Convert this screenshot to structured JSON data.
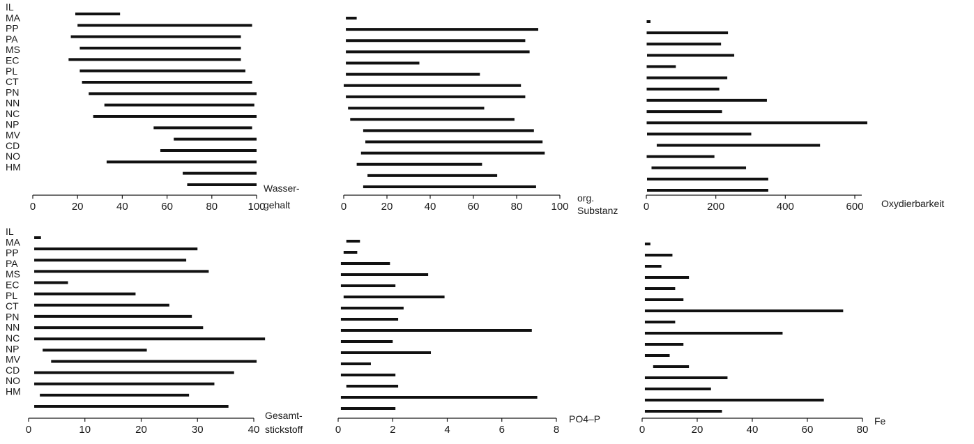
{
  "chart_data": {
    "type": "bar",
    "orientation": "horizontal-range",
    "grid": false,
    "categories": [
      "IL",
      "MA",
      "PP",
      "PA",
      "MS",
      "EC",
      "PL",
      "CT",
      "PN",
      "NN",
      "NC",
      "NP",
      "MV",
      "CD",
      "NO",
      "HM"
    ],
    "panels": [
      {
        "xlabel_lines": [
          "Wasser-",
          "gehalt"
        ],
        "ticks": [
          0,
          20,
          40,
          60,
          80,
          100
        ],
        "xlim": [
          0,
          100
        ],
        "ranges": [
          [
            19,
            39
          ],
          [
            20,
            98
          ],
          [
            17,
            93
          ],
          [
            21,
            93
          ],
          [
            16,
            93
          ],
          [
            21,
            95
          ],
          [
            22,
            98
          ],
          [
            25,
            100
          ],
          [
            32,
            99
          ],
          [
            27,
            100
          ],
          [
            54,
            98
          ],
          [
            63,
            100
          ],
          [
            57,
            100
          ],
          [
            33,
            100
          ],
          [
            67,
            100
          ],
          [
            69,
            100
          ]
        ]
      },
      {
        "xlabel_lines": [
          "org.",
          "Substanz"
        ],
        "ticks": [
          0,
          20,
          40,
          60,
          80,
          100
        ],
        "xlim": [
          0,
          100
        ],
        "ranges": [
          [
            1,
            6
          ],
          [
            1,
            90
          ],
          [
            1,
            84
          ],
          [
            1,
            86
          ],
          [
            1,
            35
          ],
          [
            1,
            63
          ],
          [
            0,
            82
          ],
          [
            1,
            84
          ],
          [
            2,
            65
          ],
          [
            3,
            79
          ],
          [
            9,
            88
          ],
          [
            10,
            92
          ],
          [
            8,
            93
          ],
          [
            6,
            64
          ],
          [
            11,
            71
          ],
          [
            9,
            89
          ]
        ]
      },
      {
        "xlabel_lines": [
          "Oxydierbarkeit"
        ],
        "ticks": [
          0,
          200,
          400,
          600
        ],
        "xlim": [
          0,
          620
        ],
        "ranges": [
          [
            1,
            12
          ],
          [
            1,
            235
          ],
          [
            1,
            215
          ],
          [
            2,
            253
          ],
          [
            1,
            85
          ],
          [
            1,
            233
          ],
          [
            1,
            210
          ],
          [
            1,
            347
          ],
          [
            1,
            218
          ],
          [
            1,
            636
          ],
          [
            2,
            302
          ],
          [
            30,
            500
          ],
          [
            1,
            196
          ],
          [
            15,
            287
          ],
          [
            2,
            351
          ],
          [
            2,
            351
          ]
        ]
      },
      {
        "xlabel_lines": [
          "Gesamt-",
          "stickstoff"
        ],
        "ticks": [
          0,
          10,
          20,
          30,
          40
        ],
        "xlim": [
          0,
          40
        ],
        "ranges": [
          [
            1,
            2.2
          ],
          [
            1,
            30
          ],
          [
            1,
            28
          ],
          [
            1,
            32
          ],
          [
            1,
            7
          ],
          [
            1,
            19
          ],
          [
            1,
            25
          ],
          [
            1,
            29
          ],
          [
            1,
            31
          ],
          [
            1,
            42
          ],
          [
            2.5,
            21
          ],
          [
            4,
            40.5
          ],
          [
            1,
            36.5
          ],
          [
            1,
            33
          ],
          [
            2,
            28.5
          ],
          [
            1,
            35.5
          ]
        ]
      },
      {
        "xlabel_lines": [
          "PO4–P"
        ],
        "ticks": [
          0,
          2,
          4,
          6,
          8
        ],
        "xlim": [
          0,
          8
        ],
        "ranges": [
          [
            0.3,
            0.8
          ],
          [
            0.2,
            0.7
          ],
          [
            0.1,
            1.9
          ],
          [
            0.1,
            3.3
          ],
          [
            0.1,
            2.1
          ],
          [
            0.2,
            3.9
          ],
          [
            0.1,
            2.4
          ],
          [
            0.1,
            2.2
          ],
          [
            0.1,
            7.1
          ],
          [
            0.1,
            2.0
          ],
          [
            0.1,
            3.4
          ],
          [
            0.1,
            1.2
          ],
          [
            0.1,
            2.1
          ],
          [
            0.3,
            2.2
          ],
          [
            0.1,
            7.3
          ],
          [
            0.1,
            2.1
          ]
        ]
      },
      {
        "xlabel_lines": [
          "Fe"
        ],
        "ticks": [
          0,
          20,
          40,
          60,
          80
        ],
        "xlim": [
          0,
          80
        ],
        "ranges": [
          [
            1,
            3
          ],
          [
            1,
            11
          ],
          [
            1,
            7
          ],
          [
            1,
            17
          ],
          [
            1,
            12
          ],
          [
            1,
            15
          ],
          [
            1,
            73
          ],
          [
            1,
            12
          ],
          [
            1,
            51
          ],
          [
            1,
            15
          ],
          [
            1,
            10
          ],
          [
            4,
            17
          ],
          [
            1,
            31
          ],
          [
            1,
            25
          ],
          [
            1,
            66
          ],
          [
            1,
            29
          ]
        ]
      }
    ]
  }
}
